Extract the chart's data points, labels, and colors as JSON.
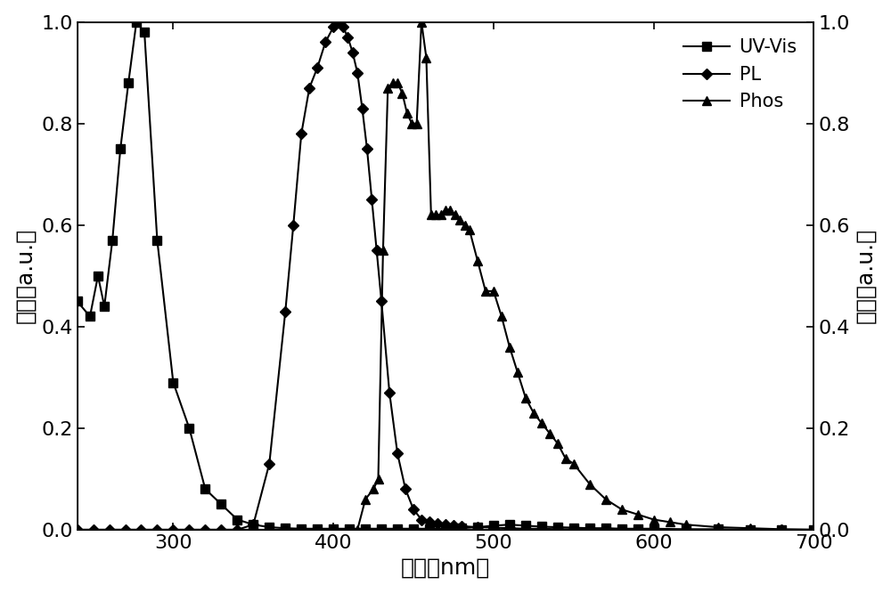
{
  "uv_x": [
    240,
    248,
    253,
    257,
    262,
    267,
    272,
    277,
    282,
    290,
    300,
    310,
    320,
    330,
    340,
    350,
    360,
    370,
    380,
    390,
    400,
    410,
    420,
    430,
    440,
    450,
    460,
    470,
    480,
    490,
    500,
    510,
    520,
    530,
    540,
    550,
    560,
    570,
    580,
    590,
    600,
    620,
    640,
    660,
    680,
    700
  ],
  "uv_y": [
    0.45,
    0.42,
    0.5,
    0.44,
    0.57,
    0.75,
    0.88,
    1.0,
    0.98,
    0.57,
    0.29,
    0.2,
    0.08,
    0.05,
    0.02,
    0.01,
    0.005,
    0.003,
    0.002,
    0.002,
    0.002,
    0.002,
    0.002,
    0.002,
    0.002,
    0.002,
    0.002,
    0.002,
    0.003,
    0.005,
    0.008,
    0.01,
    0.008,
    0.006,
    0.005,
    0.004,
    0.003,
    0.003,
    0.002,
    0.002,
    0.002,
    0.001,
    0.001,
    0.0,
    0.0,
    0.0
  ],
  "pl_x": [
    240,
    250,
    260,
    270,
    280,
    290,
    300,
    310,
    320,
    330,
    340,
    350,
    360,
    370,
    375,
    380,
    385,
    390,
    395,
    400,
    403,
    406,
    409,
    412,
    415,
    418,
    421,
    424,
    427,
    430,
    435,
    440,
    445,
    450,
    455,
    460,
    465,
    470,
    475,
    480,
    490,
    500,
    510,
    520,
    530,
    540,
    550,
    560,
    570,
    580,
    590,
    600,
    620,
    640,
    660,
    680,
    700
  ],
  "pl_y": [
    0.0,
    0.0,
    0.0,
    0.0,
    0.0,
    0.0,
    0.0,
    0.0,
    0.0,
    0.0,
    0.0,
    0.01,
    0.13,
    0.43,
    0.6,
    0.78,
    0.87,
    0.91,
    0.96,
    0.99,
    1.0,
    0.99,
    0.97,
    0.94,
    0.9,
    0.83,
    0.75,
    0.65,
    0.55,
    0.45,
    0.27,
    0.15,
    0.08,
    0.04,
    0.02,
    0.015,
    0.012,
    0.01,
    0.008,
    0.007,
    0.005,
    0.004,
    0.003,
    0.002,
    0.002,
    0.001,
    0.001,
    0.001,
    0.0,
    0.0,
    0.0,
    0.0,
    0.0,
    0.0,
    0.0,
    0.0,
    0.0
  ],
  "phos_x": [
    240,
    300,
    350,
    400,
    410,
    415,
    420,
    425,
    428,
    431,
    434,
    437,
    440,
    443,
    446,
    449,
    452,
    455,
    458,
    461,
    464,
    467,
    470,
    473,
    476,
    479,
    482,
    485,
    490,
    495,
    500,
    505,
    510,
    515,
    520,
    525,
    530,
    535,
    540,
    545,
    550,
    560,
    570,
    580,
    590,
    600,
    610,
    620,
    640,
    660,
    680,
    700
  ],
  "phos_y": [
    0.0,
    0.0,
    0.0,
    0.0,
    0.0,
    0.0,
    0.06,
    0.08,
    0.1,
    0.55,
    0.87,
    0.88,
    0.88,
    0.86,
    0.82,
    0.8,
    0.8,
    1.0,
    0.93,
    0.62,
    0.62,
    0.62,
    0.63,
    0.63,
    0.62,
    0.61,
    0.6,
    0.59,
    0.53,
    0.47,
    0.47,
    0.42,
    0.36,
    0.31,
    0.26,
    0.23,
    0.21,
    0.19,
    0.17,
    0.14,
    0.13,
    0.09,
    0.06,
    0.04,
    0.03,
    0.02,
    0.015,
    0.01,
    0.005,
    0.003,
    0.001,
    0.0
  ],
  "xlabel": "波长（nm）",
  "ylabel_left": "强度（a.u.）",
  "ylabel_right": "强度（a.u.）",
  "xlim": [
    240,
    700
  ],
  "ylim": [
    0.0,
    1.0
  ],
  "legend_labels": [
    "UV-Vis",
    "PL",
    "Phos"
  ],
  "color": "#000000",
  "background": "#ffffff",
  "tick_fontsize": 16,
  "label_fontsize": 18,
  "legend_fontsize": 15
}
